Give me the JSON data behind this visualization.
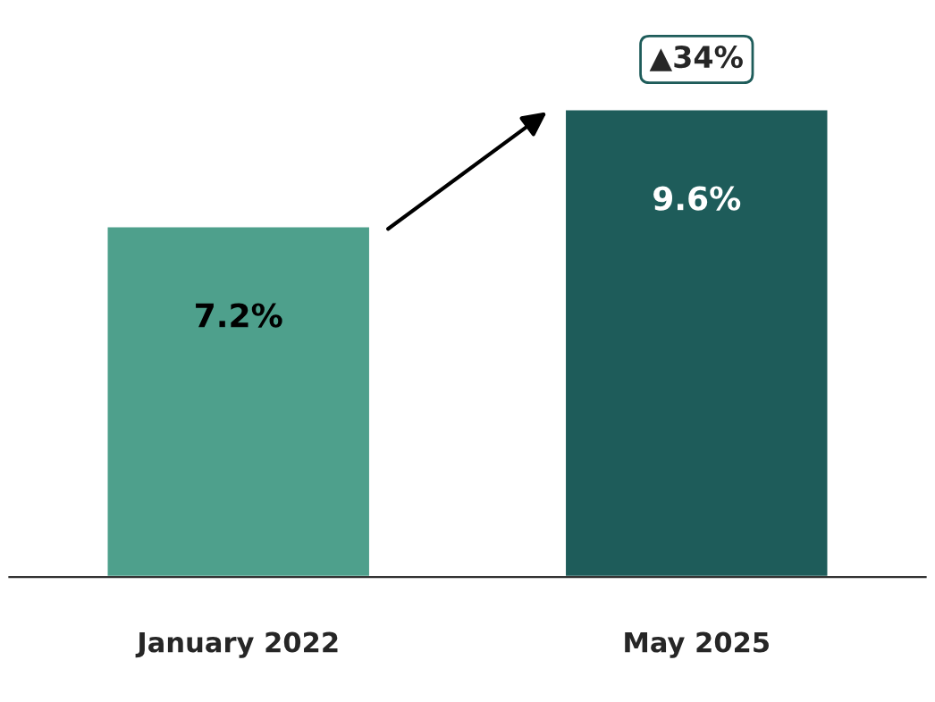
{
  "chart_data": {
    "type": "bar",
    "categories": [
      "January 2022",
      "May 2025"
    ],
    "values": [
      7.2,
      9.6
    ],
    "colors": [
      "#4ea08c",
      "#1e5c5a"
    ],
    "value_labels": [
      "7.2%",
      "9.6%"
    ],
    "annotations": [
      {
        "text": "▲34%",
        "x": "May 2025",
        "y": 9.6
      }
    ],
    "grid": false,
    "legend": false
  }
}
